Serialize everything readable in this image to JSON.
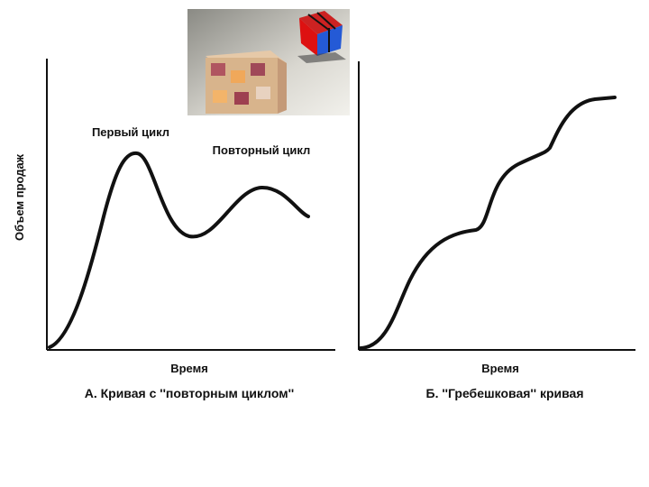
{
  "left_panel": {
    "annotations": [
      "Первый цикл",
      "Повторный цикл"
    ],
    "y_axis_label": "Объем продаж",
    "x_axis_label": "Время",
    "caption": "А. Кривая с ''повторным циклом''"
  },
  "right_panel": {
    "x_axis_label": "Время",
    "caption": "Б. ''Гребешковая'' кривая"
  }
}
